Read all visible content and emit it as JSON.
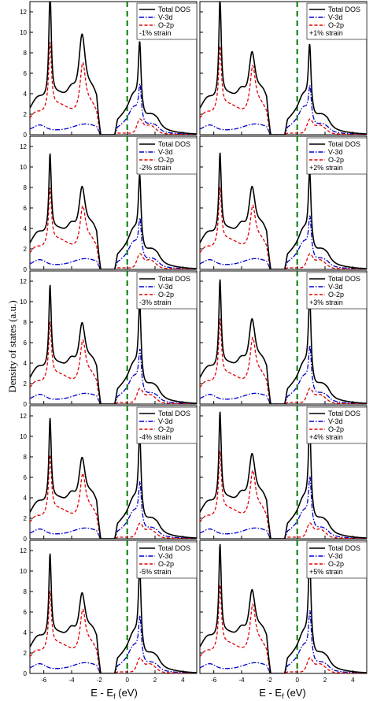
{
  "figure": {
    "ylabel": "Density of states (a.u.)",
    "xlabel_main": "E - E",
    "xlabel_sub": "f",
    "xlabel_unit": " (eV)"
  },
  "chart_data": {
    "type": "line",
    "xlim": [
      -7,
      5
    ],
    "ylim": [
      0,
      13
    ],
    "xticks": [
      -6,
      -4,
      -2,
      0,
      2,
      4
    ],
    "yticks": [
      0,
      2,
      4,
      6,
      8,
      10,
      12
    ],
    "fermi_level": 0,
    "legend_position": "top-right",
    "series_styles": [
      {
        "name": "Total DOS",
        "color": "#000000",
        "dash": "solid"
      },
      {
        "name": "V-3d",
        "color": "#0000cc",
        "dash": "dash-dot"
      },
      {
        "name": "O-2p",
        "color": "#e00000",
        "dash": "dashed"
      }
    ],
    "fermi_color": "#007a00",
    "panels": [
      {
        "strain": "-1% strain",
        "tpeak": 13.5,
        "vpeak": 8.6,
        "cpeak": 5.1,
        "ipk": 9.8
      },
      {
        "strain": "+1% strain",
        "tpeak": 12.6,
        "vpeak": 8.1,
        "cpeak": 4.9,
        "ipk": 7.5
      },
      {
        "strain": "-2% strain",
        "tpeak": 9.9,
        "vpeak": 7.2,
        "cpeak": 5.2,
        "ipk": 7.5
      },
      {
        "strain": "+2% strain",
        "tpeak": 10.0,
        "vpeak": 7.3,
        "cpeak": 5.5,
        "ipk": 7.5
      },
      {
        "strain": "-3% strain",
        "tpeak": 10.3,
        "vpeak": 7.3,
        "cpeak": 5.7,
        "ipk": 7.3
      },
      {
        "strain": "+3% strain",
        "tpeak": 11.0,
        "vpeak": 7.7,
        "cpeak": 6.2,
        "ipk": 7.8
      },
      {
        "strain": "-4% strain",
        "tpeak": 10.5,
        "vpeak": 7.5,
        "cpeak": 6.0,
        "ipk": 7.3
      },
      {
        "strain": "+4% strain",
        "tpeak": 11.3,
        "vpeak": 8.0,
        "cpeak": 6.7,
        "ipk": 7.8
      },
      {
        "strain": "-5% strain",
        "tpeak": 10.4,
        "vpeak": 7.3,
        "cpeak": 6.1,
        "ipk": 7.2
      },
      {
        "strain": "+5% strain",
        "tpeak": 11.6,
        "vpeak": 8.1,
        "cpeak": 6.8,
        "ipk": 7.6
      }
    ]
  }
}
